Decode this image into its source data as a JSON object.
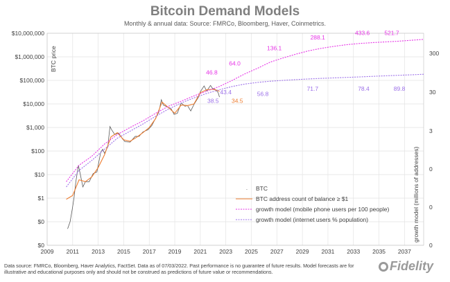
{
  "header": {
    "title": "Bitcoin Demand Models",
    "subtitle": "Monthly & annual data:  Source: FMRCo, Bloomberg, Haver, Coinmetrics."
  },
  "footer": {
    "note": "Data source: FMRCo, Bloomberg, Haver Analytics, FactSet. Data as of 07/03/2022. Past performance is no guarantee of future results. Model forecasts are for illustrative and educational purposes only and should not be construed as predictions of future value or recommendations.",
    "logo": "Fidelity"
  },
  "chart_data": {
    "type": "line",
    "title": "Bitcoin Demand Models",
    "ylabel": "BTC price",
    "y2label": "growth model (millions of addresses)",
    "x_ticks": [
      2009,
      2011,
      2013,
      2015,
      2017,
      2019,
      2021,
      2023,
      2025,
      2027,
      2029,
      2031,
      2033,
      2035,
      2037
    ],
    "y_ticks": [
      "$0",
      "$0",
      "$1",
      "$10",
      "$100",
      "$1,000",
      "$10,000",
      "$100,000",
      "$1,000,000",
      "$10,000,000"
    ],
    "y_ticks_right": [
      "0",
      "0",
      "0",
      "3",
      "30",
      "300"
    ],
    "y_scale": "log",
    "xlim": [
      2009,
      2038.5
    ],
    "grid": true,
    "legend_position": "bottom-right",
    "series": [
      {
        "name": "BTC",
        "color": "#595959",
        "points": [
          [
            2010.6,
            0.05
          ],
          [
            2010.8,
            0.1
          ],
          [
            2010.95,
            0.3
          ],
          [
            2011.1,
            1
          ],
          [
            2011.25,
            5
          ],
          [
            2011.45,
            25
          ],
          [
            2011.6,
            10
          ],
          [
            2011.8,
            3
          ],
          [
            2012.0,
            5
          ],
          [
            2012.3,
            5
          ],
          [
            2012.6,
            11
          ],
          [
            2012.9,
            13
          ],
          [
            2013.2,
            90
          ],
          [
            2013.35,
            120
          ],
          [
            2013.5,
            80
          ],
          [
            2013.75,
            150
          ],
          [
            2013.92,
            1100
          ],
          [
            2014.05,
            800
          ],
          [
            2014.3,
            500
          ],
          [
            2014.6,
            580
          ],
          [
            2014.9,
            330
          ],
          [
            2015.1,
            250
          ],
          [
            2015.5,
            240
          ],
          [
            2015.9,
            420
          ],
          [
            2016.2,
            420
          ],
          [
            2016.5,
            650
          ],
          [
            2016.9,
            800
          ],
          [
            2017.2,
            1200
          ],
          [
            2017.5,
            2500
          ],
          [
            2017.75,
            4500
          ],
          [
            2017.95,
            15000
          ],
          [
            2018.1,
            9000
          ],
          [
            2018.4,
            7500
          ],
          [
            2018.7,
            6500
          ],
          [
            2018.95,
            3600
          ],
          [
            2019.2,
            4000
          ],
          [
            2019.5,
            11000
          ],
          [
            2019.8,
            8000
          ],
          [
            2020.0,
            8500
          ],
          [
            2020.25,
            5000
          ],
          [
            2020.5,
            9500
          ],
          [
            2020.85,
            19000
          ],
          [
            2021.0,
            33000
          ],
          [
            2021.3,
            58000
          ],
          [
            2021.5,
            35000
          ],
          [
            2021.8,
            61000
          ],
          [
            2021.95,
            46000
          ],
          [
            2022.2,
            40000
          ],
          [
            2022.4,
            30000
          ],
          [
            2022.5,
            19500
          ]
        ]
      },
      {
        "name": "BTC address count of balance ≥ $1",
        "color": "#ed7d31",
        "points": [
          [
            2010.5,
            0.9
          ],
          [
            2011.0,
            1.3
          ],
          [
            2011.5,
            6
          ],
          [
            2012.0,
            5
          ],
          [
            2012.5,
            8
          ],
          [
            2013.0,
            20
          ],
          [
            2013.5,
            70
          ],
          [
            2014.0,
            400
          ],
          [
            2014.5,
            600
          ],
          [
            2015.0,
            300
          ],
          [
            2015.5,
            260
          ],
          [
            2016.0,
            380
          ],
          [
            2016.5,
            600
          ],
          [
            2017.0,
            1000
          ],
          [
            2017.5,
            2400
          ],
          [
            2018.0,
            12000
          ],
          [
            2018.5,
            7000
          ],
          [
            2019.0,
            4000
          ],
          [
            2019.5,
            9000
          ],
          [
            2020.0,
            8500
          ],
          [
            2020.5,
            10000
          ],
          [
            2021.0,
            30000
          ],
          [
            2021.5,
            40000
          ],
          [
            2022.0,
            42000
          ],
          [
            2022.3,
            38000
          ],
          [
            2022.5,
            34500
          ]
        ]
      },
      {
        "name": "growth model (mobile phone users per 100 people)",
        "color": "#e633e6",
        "points": [
          [
            2010.5,
            5
          ],
          [
            2011.5,
            25
          ],
          [
            2012.5,
            60
          ],
          [
            2013.5,
            200
          ],
          [
            2014.5,
            500
          ],
          [
            2015.5,
            1000
          ],
          [
            2016.5,
            1900
          ],
          [
            2017.5,
            4000
          ],
          [
            2018.5,
            8000
          ],
          [
            2019.5,
            13000
          ],
          [
            2020.5,
            22000
          ],
          [
            2021.5,
            35000
          ],
          [
            2022.5,
            55000
          ],
          [
            2023.5,
            100000
          ],
          [
            2024.5,
            190000
          ],
          [
            2025.5,
            330000
          ],
          [
            2026.5,
            600000
          ],
          [
            2027.5,
            900000
          ],
          [
            2028.5,
            1300000
          ],
          [
            2029.5,
            1800000
          ],
          [
            2030.5,
            2300000
          ],
          [
            2031.5,
            2800000
          ],
          [
            2032.5,
            3300000
          ],
          [
            2033.5,
            3700000
          ],
          [
            2034.5,
            4000000
          ],
          [
            2035.5,
            4300000
          ],
          [
            2036.5,
            4600000
          ],
          [
            2037.5,
            5000000
          ],
          [
            2038.5,
            5500000
          ]
        ]
      },
      {
        "name": "growth model (internet users % population)",
        "color": "#9b6fe8",
        "points": [
          [
            2010.5,
            3
          ],
          [
            2011.5,
            15
          ],
          [
            2012.5,
            40
          ],
          [
            2013.5,
            120
          ],
          [
            2014.5,
            350
          ],
          [
            2015.5,
            700
          ],
          [
            2016.5,
            1400
          ],
          [
            2017.5,
            3000
          ],
          [
            2018.5,
            6000
          ],
          [
            2019.5,
            11000
          ],
          [
            2020.5,
            18000
          ],
          [
            2021.5,
            28000
          ],
          [
            2022.5,
            40000
          ],
          [
            2023.5,
            55000
          ],
          [
            2024.5,
            70000
          ],
          [
            2025.5,
            82000
          ],
          [
            2026.5,
            92000
          ],
          [
            2027.5,
            100000
          ],
          [
            2028.5,
            108000
          ],
          [
            2029.5,
            115000
          ],
          [
            2030.5,
            122000
          ],
          [
            2031.5,
            128000
          ],
          [
            2032.5,
            134000
          ],
          [
            2033.5,
            140000
          ],
          [
            2034.5,
            148000
          ],
          [
            2035.5,
            156000
          ],
          [
            2036.5,
            164000
          ],
          [
            2037.5,
            172000
          ],
          [
            2038.5,
            182000
          ]
        ]
      }
    ],
    "annotations": [
      {
        "text": "46.8",
        "x": 2021.9,
        "y": 180000,
        "color": "#e633e6"
      },
      {
        "text": "64.0",
        "x": 2023.7,
        "y": 430000,
        "color": "#e633e6"
      },
      {
        "text": "136.1",
        "x": 2026.8,
        "y": 1900000,
        "color": "#e633e6"
      },
      {
        "text": "288.1",
        "x": 2030.2,
        "y": 5500000,
        "color": "#e633e6"
      },
      {
        "text": "433.6",
        "x": 2033.7,
        "y": 8500000,
        "color": "#e633e6"
      },
      {
        "text": "521.7",
        "x": 2036.0,
        "y": 8500000,
        "color": "#e633e6"
      },
      {
        "text": "43.4",
        "x": 2023.0,
        "y": 26000,
        "color": "#9b6fe8"
      },
      {
        "text": "38.5",
        "x": 2022.0,
        "y": 11000,
        "color": "#9b6fe8"
      },
      {
        "text": "34.5",
        "x": 2023.9,
        "y": 11000,
        "color": "#ed7d31"
      },
      {
        "text": "56.8",
        "x": 2025.9,
        "y": 22000,
        "color": "#9b6fe8"
      },
      {
        "text": "71.7",
        "x": 2029.8,
        "y": 36000,
        "color": "#9b6fe8"
      },
      {
        "text": "78.4",
        "x": 2033.8,
        "y": 36000,
        "color": "#9b6fe8"
      },
      {
        "text": "89.8",
        "x": 2036.6,
        "y": 36000,
        "color": "#9b6fe8"
      }
    ]
  }
}
